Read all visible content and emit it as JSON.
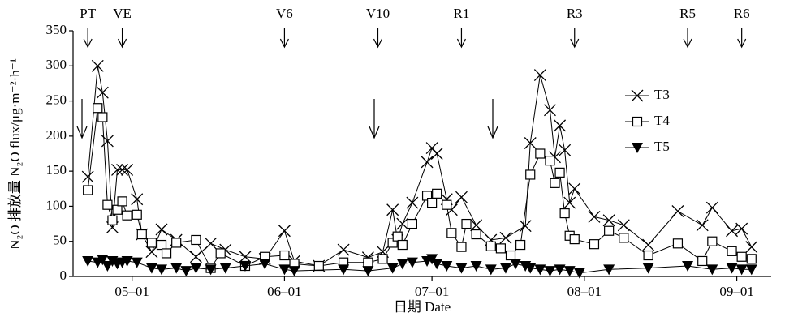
{
  "chart_data": {
    "type": "line",
    "ylabel": "N₂O 排放量 N₂O flux/μg·m⁻²·h⁻¹",
    "xlabel": "日期 Date",
    "xlim": [
      "04-19",
      "09-08"
    ],
    "xticks": [
      "05–01",
      "06–01",
      "07–01",
      "08–01",
      "09–01"
    ],
    "ylim": [
      0,
      350
    ],
    "yticks": [
      0,
      50,
      100,
      150,
      200,
      250,
      300,
      350
    ],
    "legend": "right",
    "stages": [
      {
        "label": "PT",
        "x": "04-22"
      },
      {
        "label": "VE",
        "x": "04-29"
      },
      {
        "label": "V6",
        "x": "06-01"
      },
      {
        "label": "V10",
        "x": "06-20"
      },
      {
        "label": "R1",
        "x": "07-07"
      },
      {
        "label": "R3",
        "x": "07-30"
      },
      {
        "label": "R5",
        "x": "08-22"
      },
      {
        "label": "R6",
        "x": "09-02"
      }
    ],
    "series": [
      {
        "name": "T3",
        "marker": "x",
        "color": "#000000",
        "x": [
          "04-22",
          "04-24",
          "04-25",
          "04-26",
          "04-27",
          "04-28",
          "04-29",
          "04-30",
          "05-02",
          "05-03",
          "05-05",
          "05-07",
          "05-10",
          "05-14",
          "05-17",
          "05-20",
          "05-24",
          "05-28",
          "06-01",
          "06-03",
          "06-08",
          "06-13",
          "06-18",
          "06-21",
          "06-23",
          "06-24",
          "06-25",
          "06-27",
          "06-30",
          "07-01",
          "07-02",
          "07-04",
          "07-05",
          "07-07",
          "07-10",
          "07-13",
          "07-16",
          "07-20",
          "07-21",
          "07-23",
          "07-25",
          "07-26",
          "07-27",
          "07-28",
          "07-29",
          "07-30",
          "08-03",
          "08-06",
          "08-09",
          "08-14",
          "08-20",
          "08-25",
          "08-27",
          "08-31",
          "09-02",
          "09-04"
        ],
        "values": [
          142,
          300,
          262,
          193,
          70,
          152,
          152,
          152,
          110,
          60,
          35,
          67,
          52,
          28,
          47,
          38,
          28,
          25,
          65,
          22,
          15,
          38,
          27,
          35,
          95,
          52,
          75,
          105,
          163,
          183,
          175,
          110,
          95,
          113,
          73,
          52,
          55,
          72,
          190,
          287,
          237,
          170,
          215,
          180,
          105,
          125,
          85,
          80,
          73,
          45,
          93,
          73,
          98,
          65,
          68,
          42
        ]
      },
      {
        "name": "T4",
        "marker": "square",
        "color": "#000000",
        "x": [
          "04-22",
          "04-24",
          "04-25",
          "04-26",
          "04-27",
          "04-28",
          "04-29",
          "04-30",
          "05-02",
          "05-03",
          "05-05",
          "05-07",
          "05-08",
          "05-10",
          "05-14",
          "05-17",
          "05-19",
          "05-24",
          "05-28",
          "06-01",
          "06-03",
          "06-08",
          "06-13",
          "06-18",
          "06-21",
          "06-23",
          "06-24",
          "06-25",
          "06-27",
          "06-30",
          "07-01",
          "07-02",
          "07-04",
          "07-05",
          "07-07",
          "07-08",
          "07-10",
          "07-13",
          "07-15",
          "07-17",
          "07-19",
          "07-21",
          "07-23",
          "07-25",
          "07-26",
          "07-27",
          "07-28",
          "07-29",
          "07-30",
          "08-03",
          "08-06",
          "08-09",
          "08-14",
          "08-20",
          "08-25",
          "08-27",
          "08-31",
          "09-02",
          "09-04"
        ],
        "values": [
          123,
          240,
          227,
          102,
          80,
          95,
          107,
          87,
          88,
          60,
          48,
          45,
          33,
          48,
          52,
          12,
          33,
          15,
          28,
          30,
          18,
          15,
          20,
          20,
          25,
          48,
          57,
          45,
          75,
          115,
          105,
          118,
          102,
          62,
          42,
          75,
          60,
          43,
          40,
          30,
          45,
          145,
          175,
          165,
          133,
          148,
          90,
          58,
          53,
          46,
          65,
          55,
          30,
          47,
          22,
          50,
          36,
          28,
          25
        ]
      },
      {
        "name": "T5",
        "marker": "triangle-down",
        "color": "#000000",
        "x": [
          "04-22",
          "04-24",
          "04-25",
          "04-26",
          "04-27",
          "04-28",
          "04-29",
          "04-30",
          "05-02",
          "05-05",
          "05-07",
          "05-10",
          "05-12",
          "05-14",
          "05-17",
          "05-20",
          "05-24",
          "05-28",
          "06-01",
          "06-03",
          "06-13",
          "06-18",
          "06-23",
          "06-25",
          "06-27",
          "06-30",
          "07-01",
          "07-02",
          "07-04",
          "07-07",
          "07-10",
          "07-13",
          "07-16",
          "07-18",
          "07-20",
          "07-21",
          "07-23",
          "07-25",
          "07-27",
          "07-29",
          "07-31",
          "08-06",
          "08-14",
          "08-22",
          "08-27",
          "08-31",
          "09-02",
          "09-04"
        ],
        "values": [
          22,
          20,
          24,
          15,
          22,
          18,
          20,
          22,
          20,
          12,
          10,
          12,
          8,
          12,
          10,
          12,
          15,
          18,
          10,
          8,
          10,
          8,
          12,
          18,
          20,
          22,
          25,
          18,
          15,
          12,
          15,
          10,
          12,
          18,
          15,
          12,
          10,
          8,
          10,
          8,
          5,
          10,
          12,
          15,
          10,
          12,
          10,
          10
        ]
      }
    ]
  }
}
